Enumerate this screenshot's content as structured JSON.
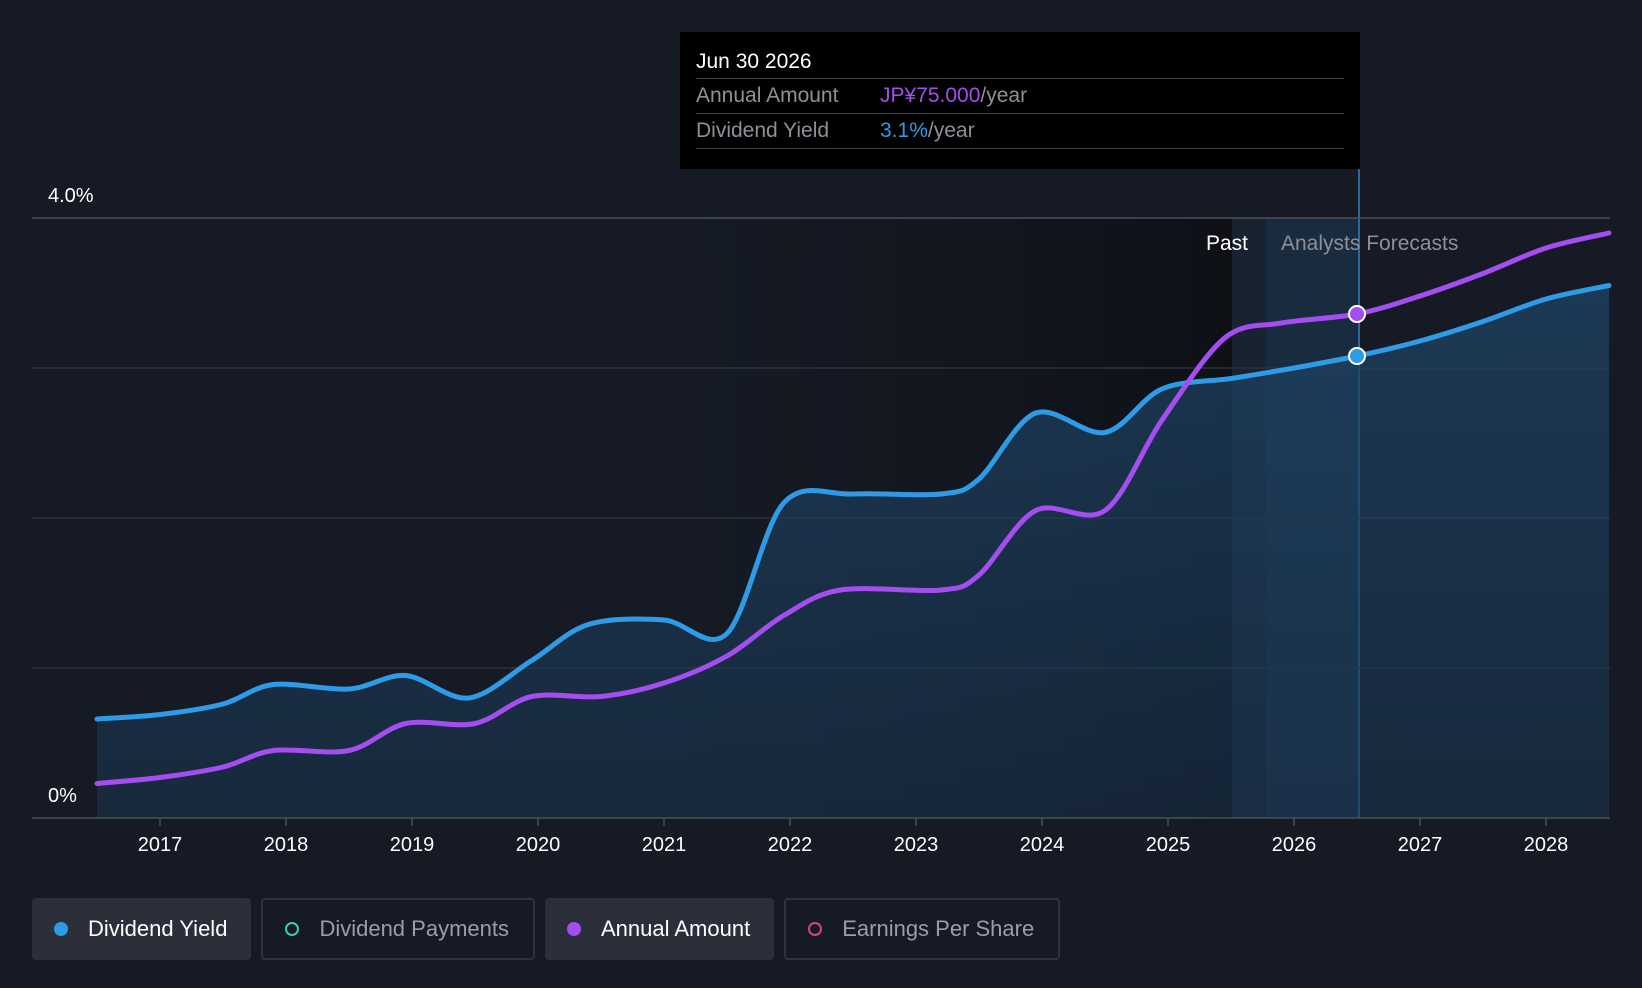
{
  "chart_data": {
    "type": "line",
    "x_ticks": [
      "2017",
      "2018",
      "2019",
      "2020",
      "2021",
      "2022",
      "2023",
      "2024",
      "2025",
      "2026",
      "2027",
      "2028"
    ],
    "y_axis": {
      "top_label": "4.0%",
      "bottom_label": "0%",
      "ylim": [
        0,
        4.0
      ]
    },
    "regions": {
      "past_label": "Past",
      "forecast_label": "Analysts Forecasts"
    },
    "series": [
      {
        "name": "Dividend Yield",
        "color": "#2e9be6",
        "unit": "%",
        "points": [
          [
            2016.5,
            0.66
          ],
          [
            2017.0,
            0.69
          ],
          [
            2017.5,
            0.76
          ],
          [
            2017.9,
            0.89
          ],
          [
            2018.5,
            0.86
          ],
          [
            2018.95,
            0.95
          ],
          [
            2019.45,
            0.8
          ],
          [
            2019.95,
            1.05
          ],
          [
            2020.4,
            1.29
          ],
          [
            2021.0,
            1.32
          ],
          [
            2021.5,
            1.23
          ],
          [
            2021.95,
            2.1
          ],
          [
            2022.5,
            2.16
          ],
          [
            2023.2,
            2.16
          ],
          [
            2023.5,
            2.26
          ],
          [
            2023.95,
            2.7
          ],
          [
            2024.5,
            2.57
          ],
          [
            2024.95,
            2.86
          ],
          [
            2025.5,
            2.93
          ],
          [
            2026.0,
            3.0
          ],
          [
            2026.5,
            3.08
          ],
          [
            2027.0,
            3.18
          ],
          [
            2027.5,
            3.31
          ],
          [
            2028.0,
            3.46
          ],
          [
            2028.5,
            3.55
          ]
        ],
        "highlight": {
          "x": 2026.5,
          "y": 3.08
        }
      },
      {
        "name": "Annual Amount",
        "color": "#a44df0",
        "unit": "JP¥",
        "points": [
          [
            2016.5,
            0.23
          ],
          [
            2017.0,
            0.27
          ],
          [
            2017.5,
            0.34
          ],
          [
            2017.9,
            0.45
          ],
          [
            2018.5,
            0.45
          ],
          [
            2018.95,
            0.63
          ],
          [
            2019.5,
            0.63
          ],
          [
            2019.95,
            0.81
          ],
          [
            2020.5,
            0.81
          ],
          [
            2021.0,
            0.9
          ],
          [
            2021.5,
            1.08
          ],
          [
            2021.95,
            1.35
          ],
          [
            2022.4,
            1.52
          ],
          [
            2023.2,
            1.52
          ],
          [
            2023.5,
            1.62
          ],
          [
            2023.95,
            2.05
          ],
          [
            2024.5,
            2.05
          ],
          [
            2024.95,
            2.65
          ],
          [
            2025.45,
            3.2
          ],
          [
            2025.9,
            3.3
          ],
          [
            2026.5,
            3.36
          ],
          [
            2027.0,
            3.48
          ],
          [
            2027.5,
            3.63
          ],
          [
            2028.0,
            3.8
          ],
          [
            2028.5,
            3.9
          ]
        ],
        "highlight": {
          "x": 2026.5,
          "y": 3.36
        }
      }
    ]
  },
  "tooltip": {
    "date": "Jun 30 2026",
    "rows": [
      {
        "label": "Annual Amount",
        "value": "JP¥75.000",
        "unit": "/year",
        "color": "#a44df0"
      },
      {
        "label": "Dividend Yield",
        "value": "3.1%",
        "unit": "/year",
        "color": "#2e9be6"
      }
    ]
  },
  "legend": [
    {
      "label": "Dividend Yield",
      "color": "#2e9be6",
      "active": true
    },
    {
      "label": "Dividend Payments",
      "color": "#3ec9b6",
      "active": false
    },
    {
      "label": "Annual Amount",
      "color": "#a44df0",
      "active": true
    },
    {
      "label": "Earnings Per Share",
      "color": "#d0467e",
      "active": false
    }
  ]
}
